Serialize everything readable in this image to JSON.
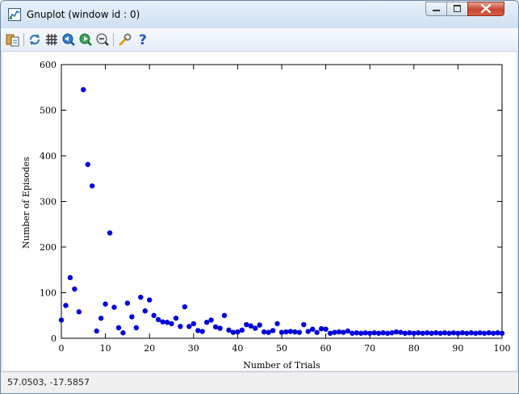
{
  "window": {
    "title": "Gnuplot (window id : 0)"
  },
  "toolbar": {
    "icons": [
      "copy-to-clipboard-icon",
      "replot-icon",
      "grid-icon",
      "zoom-previous-icon",
      "zoom-next-icon",
      "unzoom-icon",
      "options-icon",
      "help-icon"
    ],
    "help_glyph": "?"
  },
  "status": {
    "coords": "57.0503, -17.5857"
  },
  "colors": {
    "points": "#0000dd",
    "close_button": "#c7452f"
  },
  "chart_data": {
    "type": "scatter",
    "xlabel": "Number of Trials",
    "ylabel": "Number of Episodes",
    "xlim": [
      0,
      100
    ],
    "ylim": [
      0,
      600
    ],
    "xticks": [
      0,
      10,
      20,
      30,
      40,
      50,
      60,
      70,
      80,
      90,
      100
    ],
    "yticks": [
      0,
      100,
      200,
      300,
      400,
      500,
      600
    ],
    "grid": false,
    "legend": "none",
    "points": [
      [
        0,
        40
      ],
      [
        1,
        72
      ],
      [
        2,
        133
      ],
      [
        3,
        108
      ],
      [
        4,
        58
      ],
      [
        5,
        545
      ],
      [
        6,
        381
      ],
      [
        7,
        334
      ],
      [
        8,
        16
      ],
      [
        9,
        44
      ],
      [
        10,
        75
      ],
      [
        11,
        231
      ],
      [
        12,
        68
      ],
      [
        13,
        23
      ],
      [
        14,
        12
      ],
      [
        15,
        77
      ],
      [
        16,
        47
      ],
      [
        17,
        23
      ],
      [
        18,
        90
      ],
      [
        19,
        60
      ],
      [
        20,
        84
      ],
      [
        21,
        50
      ],
      [
        22,
        41
      ],
      [
        23,
        36
      ],
      [
        24,
        35
      ],
      [
        25,
        32
      ],
      [
        26,
        44
      ],
      [
        27,
        26
      ],
      [
        28,
        69
      ],
      [
        29,
        26
      ],
      [
        30,
        32
      ],
      [
        31,
        17
      ],
      [
        32,
        15
      ],
      [
        33,
        35
      ],
      [
        34,
        40
      ],
      [
        35,
        25
      ],
      [
        36,
        22
      ],
      [
        37,
        50
      ],
      [
        38,
        18
      ],
      [
        39,
        13
      ],
      [
        40,
        14
      ],
      [
        41,
        18
      ],
      [
        42,
        30
      ],
      [
        43,
        27
      ],
      [
        44,
        22
      ],
      [
        45,
        29
      ],
      [
        46,
        14
      ],
      [
        47,
        13
      ],
      [
        48,
        17
      ],
      [
        49,
        32
      ],
      [
        50,
        13
      ],
      [
        51,
        14
      ],
      [
        52,
        15
      ],
      [
        53,
        14
      ],
      [
        54,
        13
      ],
      [
        55,
        30
      ],
      [
        56,
        15
      ],
      [
        57,
        20
      ],
      [
        58,
        13
      ],
      [
        59,
        21
      ],
      [
        60,
        20
      ],
      [
        61,
        11
      ],
      [
        62,
        13
      ],
      [
        63,
        14
      ],
      [
        64,
        13
      ],
      [
        65,
        16
      ],
      [
        66,
        11
      ],
      [
        67,
        12
      ],
      [
        68,
        11
      ],
      [
        69,
        12
      ],
      [
        70,
        11
      ],
      [
        71,
        12
      ],
      [
        72,
        11
      ],
      [
        73,
        12
      ],
      [
        74,
        11
      ],
      [
        75,
        12
      ],
      [
        76,
        14
      ],
      [
        77,
        13
      ],
      [
        78,
        11
      ],
      [
        79,
        12
      ],
      [
        80,
        11
      ],
      [
        81,
        12
      ],
      [
        82,
        11
      ],
      [
        83,
        12
      ],
      [
        84,
        11
      ],
      [
        85,
        12
      ],
      [
        86,
        11
      ],
      [
        87,
        12
      ],
      [
        88,
        11
      ],
      [
        89,
        12
      ],
      [
        90,
        11
      ],
      [
        91,
        12
      ],
      [
        92,
        11
      ],
      [
        93,
        12
      ],
      [
        94,
        11
      ],
      [
        95,
        12
      ],
      [
        96,
        11
      ],
      [
        97,
        12
      ],
      [
        98,
        11
      ],
      [
        99,
        12
      ],
      [
        100,
        11
      ]
    ]
  }
}
